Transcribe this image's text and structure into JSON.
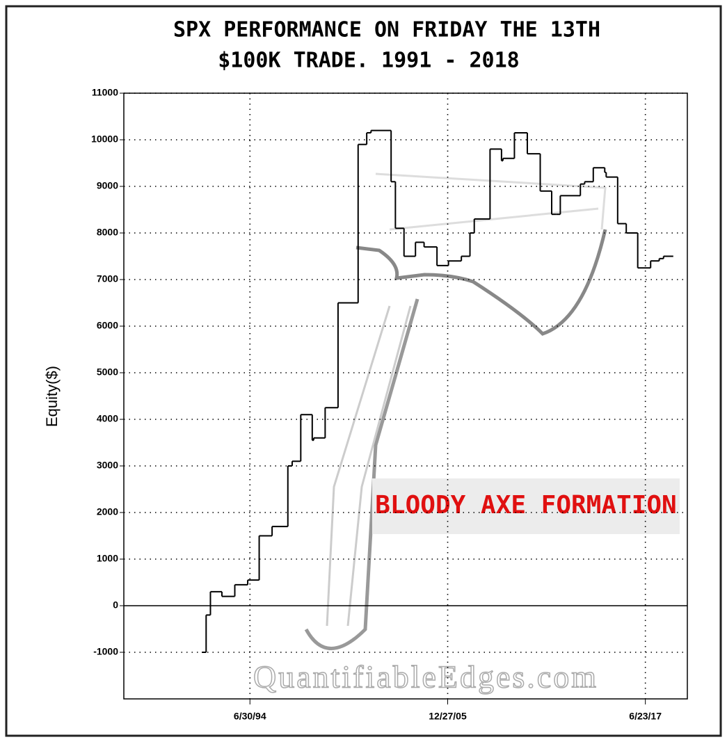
{
  "chart_data": {
    "type": "line",
    "step": true,
    "title": "SPX PERFORMANCE ON FRIDAY THE 13TH",
    "subtitle": "$100K TRADE. 1991 - 2018",
    "y_label": "Equity($)",
    "annotation": "BLOODY AXE FORMATION",
    "watermark": "QuantifiableEdges.com",
    "color": "#000000",
    "grid": true,
    "x": [
      "9/13/91",
      "12/13/91",
      "3/13/92",
      "11/13/92",
      "8/13/93",
      "5/13/94",
      "1/13/95",
      "10/13/95",
      "9/13/96",
      "12/13/96",
      "6/13/97",
      "2/13/98",
      "3/13/98",
      "11/13/98",
      "8/13/99",
      "10/13/00",
      "4/13/01",
      "7/13/01",
      "9/13/02",
      "12/13/02",
      "6/13/03",
      "2/13/04",
      "8/13/04",
      "5/13/05",
      "1/13/06",
      "10/13/06",
      "4/13/07",
      "7/13/07",
      "6/13/08",
      "2/13/09",
      "3/13/09",
      "11/13/09",
      "8/13/10",
      "5/13/11",
      "1/13/12",
      "4/13/12",
      "7/13/12",
      "9/13/13",
      "12/13/13",
      "6/13/14",
      "2/13/15",
      "3/13/15",
      "11/13/15",
      "5/13/16",
      "1/13/17",
      "10/13/17",
      "4/13/18",
      "7/13/18"
    ],
    "values": [
      -1000,
      -200,
      300,
      200,
      450,
      550,
      1500,
      1700,
      3000,
      3100,
      4100,
      3550,
      3600,
      4250,
      6500,
      9900,
      10150,
      10200,
      9100,
      8100,
      7500,
      7800,
      7700,
      7300,
      7400,
      7500,
      8000,
      8300,
      9800,
      9550,
      9600,
      10150,
      9700,
      8900,
      8400,
      8400,
      8800,
      9050,
      9100,
      9400,
      9300,
      9200,
      8200,
      8000,
      7250,
      7400,
      7450,
      7500
    ],
    "xlim": [
      "3/1/87",
      "12/1/19"
    ],
    "xticks": [
      "6/30/94",
      "12/27/05",
      "6/23/17"
    ],
    "ylim": [
      -2000,
      11000
    ],
    "yticks": [
      -1000,
      0,
      1000,
      2000,
      3000,
      4000,
      5000,
      6000,
      7000,
      8000,
      9000,
      10000,
      11000
    ]
  }
}
